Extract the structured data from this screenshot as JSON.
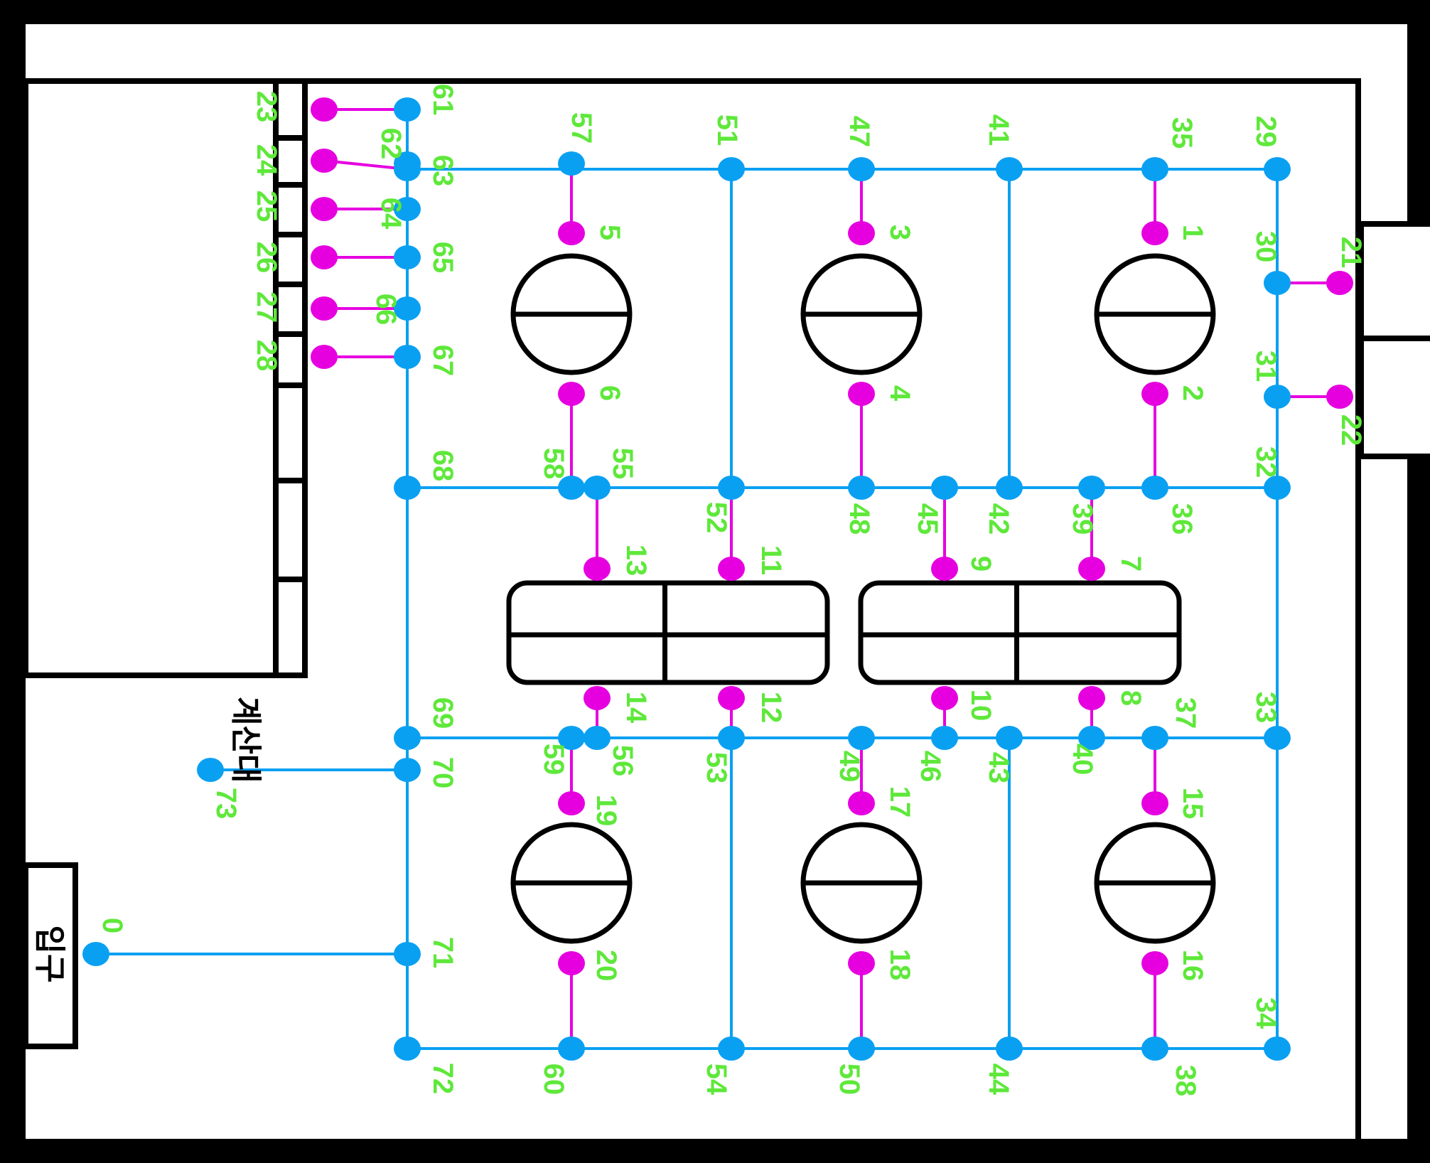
{
  "colors": {
    "frame": "#000000",
    "floor": "#ffffff",
    "path_edge": "#0aa0f2",
    "path_node": "#0aa0f2",
    "table_edge": "#e600e0",
    "table_node": "#e600e0",
    "node_label": "#5ee83a"
  },
  "labels": {
    "counter": "계산대",
    "entrance": "입구"
  },
  "graph": {
    "path_nodes": [
      "0",
      "29",
      "30",
      "31",
      "32",
      "33",
      "34",
      "35",
      "36",
      "37",
      "38",
      "39",
      "40",
      "41",
      "42",
      "43",
      "44",
      "45",
      "46",
      "47",
      "48",
      "49",
      "50",
      "51",
      "52",
      "53",
      "54",
      "55",
      "56",
      "57",
      "58",
      "59",
      "60",
      "61",
      "62",
      "63",
      "64",
      "65",
      "66",
      "67",
      "68",
      "69",
      "70",
      "71",
      "72",
      "73"
    ],
    "table_nodes": [
      "1",
      "2",
      "3",
      "4",
      "5",
      "6",
      "7",
      "8",
      "9",
      "10",
      "11",
      "12",
      "13",
      "14",
      "15",
      "16",
      "17",
      "18",
      "19",
      "20",
      "21",
      "22",
      "23",
      "24",
      "25",
      "26",
      "27",
      "28"
    ],
    "path_edges": [
      [
        "63",
        "29"
      ],
      [
        "68",
        "32"
      ],
      [
        "69",
        "33"
      ],
      [
        "72",
        "34"
      ],
      [
        "61",
        "72"
      ],
      [
        "29",
        "34"
      ],
      [
        "51",
        "52"
      ],
      [
        "53",
        "54"
      ],
      [
        "41",
        "42"
      ],
      [
        "43",
        "44"
      ],
      [
        "70",
        "73"
      ],
      [
        "71",
        "0"
      ]
    ],
    "table_edges": [
      [
        "57",
        "5"
      ],
      [
        "6",
        "58"
      ],
      [
        "47",
        "3"
      ],
      [
        "4",
        "48"
      ],
      [
        "35",
        "1"
      ],
      [
        "2",
        "36"
      ],
      [
        "55",
        "13"
      ],
      [
        "52",
        "11"
      ],
      [
        "45",
        "9"
      ],
      [
        "39",
        "7"
      ],
      [
        "14",
        "56"
      ],
      [
        "12",
        "53"
      ],
      [
        "10",
        "46"
      ],
      [
        "8",
        "40"
      ],
      [
        "59",
        "19"
      ],
      [
        "49",
        "17"
      ],
      [
        "37",
        "15"
      ],
      [
        "20",
        "60"
      ],
      [
        "18",
        "50"
      ],
      [
        "16",
        "38"
      ],
      [
        "30",
        "21"
      ],
      [
        "31",
        "22"
      ],
      [
        "23",
        "61"
      ],
      [
        "24",
        "63"
      ],
      [
        "25",
        "64"
      ],
      [
        "26",
        "65"
      ],
      [
        "27",
        "66"
      ],
      [
        "28",
        "67"
      ]
    ]
  }
}
